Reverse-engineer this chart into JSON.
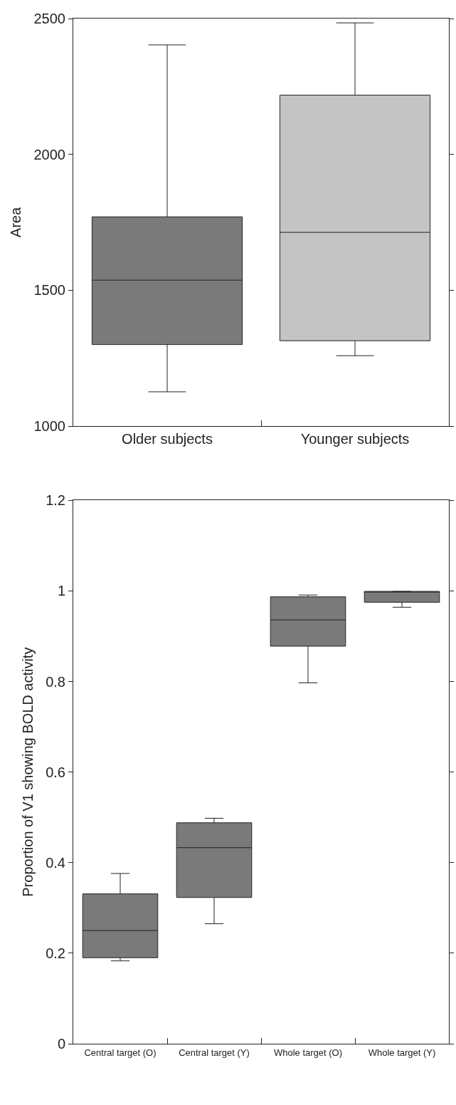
{
  "chart_data": [
    {
      "type": "box",
      "ylabel": "Area",
      "categories": [
        "Older subjects",
        "Younger subjects"
      ],
      "colors": [
        "#7a7a7a",
        "#c4c4c4"
      ],
      "ylim": [
        1000,
        2500
      ],
      "yticks": [
        1000,
        1500,
        2000,
        2500
      ],
      "legend": false,
      "boxes": [
        {
          "low": 1126,
          "q1": 1300,
          "median": 1537,
          "q3": 1770,
          "high": 2403
        },
        {
          "low": 1259,
          "q1": 1314,
          "median": 1713,
          "q3": 2218,
          "high": 2484
        }
      ]
    },
    {
      "type": "box",
      "ylabel": "Proportion of V1 showing BOLD activity",
      "categories": [
        "Central target (O)",
        "Central target (Y)",
        "Whole target (O)",
        "Whole target (Y)"
      ],
      "colors": [
        "#7a7a7a",
        "#7a7a7a",
        "#7a7a7a",
        "#7a7a7a"
      ],
      "ylim": [
        0,
        1.2
      ],
      "yticks": [
        0,
        0.2,
        0.4,
        0.6,
        0.8,
        1,
        1.2
      ],
      "legend": false,
      "boxes": [
        {
          "low": 0.183,
          "q1": 0.19,
          "median": 0.25,
          "q3": 0.331,
          "high": 0.376
        },
        {
          "low": 0.265,
          "q1": 0.323,
          "median": 0.433,
          "q3": 0.488,
          "high": 0.498
        },
        {
          "low": 0.797,
          "q1": 0.878,
          "median": 0.936,
          "q3": 0.987,
          "high": 0.991
        },
        {
          "low": 0.964,
          "q1": 0.975,
          "median": 0.998,
          "q3": 0.999,
          "high": 0.999
        }
      ]
    }
  ]
}
